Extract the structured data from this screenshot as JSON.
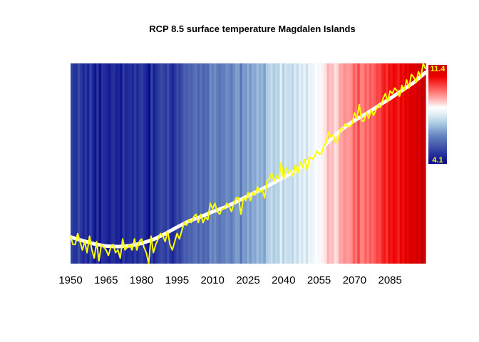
{
  "chart_data": {
    "type": "line",
    "title": "RCP 8.5 surface temperature Magdalen Islands",
    "xlabel": "",
    "ylabel": "",
    "xlim": [
      1950,
      2100
    ],
    "ylim": [
      4.1,
      11.4
    ],
    "x_ticks": [
      "1950",
      "1965",
      "1980",
      "1995",
      "2010",
      "2025",
      "2040",
      "2055",
      "2070",
      "2085"
    ],
    "colorbar": {
      "min_label": "4.1",
      "max_label": "11.4",
      "min": 4.1,
      "max": 11.4
    },
    "background": "warming stripes (one stripe per year, coloured by annual temperature)",
    "series": [
      {
        "style": "annual",
        "color": "#ffff00",
        "x": [
          1950,
          1951,
          1952,
          1953,
          1954,
          1955,
          1956,
          1957,
          1958,
          1959,
          1960,
          1961,
          1962,
          1963,
          1964,
          1965,
          1966,
          1967,
          1968,
          1969,
          1970,
          1971,
          1972,
          1973,
          1974,
          1975,
          1976,
          1977,
          1978,
          1979,
          1980,
          1981,
          1982,
          1983,
          1984,
          1985,
          1986,
          1987,
          1988,
          1989,
          1990,
          1991,
          1992,
          1993,
          1994,
          1995,
          1996,
          1997,
          1998,
          1999,
          2000,
          2001,
          2002,
          2003,
          2004,
          2005,
          2006,
          2007,
          2008,
          2009,
          2010,
          2011,
          2012,
          2013,
          2014,
          2015,
          2016,
          2017,
          2018,
          2019,
          2020,
          2021,
          2022,
          2023,
          2024,
          2025,
          2026,
          2027,
          2028,
          2029,
          2030,
          2031,
          2032,
          2033,
          2034,
          2035,
          2036,
          2037,
          2038,
          2039,
          2040,
          2041,
          2042,
          2043,
          2044,
          2045,
          2046,
          2047,
          2048,
          2049,
          2050,
          2051,
          2052,
          2053,
          2054,
          2055,
          2056,
          2057,
          2058,
          2059,
          2060,
          2061,
          2062,
          2063,
          2064,
          2065,
          2066,
          2067,
          2068,
          2069,
          2070,
          2071,
          2072,
          2073,
          2074,
          2075,
          2076,
          2077,
          2078,
          2079,
          2080,
          2081,
          2082,
          2083,
          2084,
          2085,
          2086,
          2087,
          2088,
          2089,
          2090,
          2091,
          2092,
          2093,
          2094,
          2095,
          2096,
          2097,
          2098,
          2099,
          2100
        ],
        "y": [
          5.1,
          4.8,
          4.8,
          5.2,
          4.9,
          4.6,
          4.9,
          4.5,
          5.1,
          4.6,
          4.3,
          4.9,
          4.2,
          4.8,
          4.7,
          4.6,
          4.4,
          4.7,
          4.8,
          4.5,
          4.6,
          4.3,
          5.0,
          4.6,
          4.7,
          4.8,
          4.6,
          5.0,
          4.6,
          4.9,
          5.0,
          4.7,
          4.5,
          4.1,
          5.1,
          4.5,
          4.8,
          5.0,
          5.2,
          5.1,
          4.9,
          5.3,
          4.8,
          4.6,
          4.9,
          5.2,
          5.0,
          5.3,
          5.6,
          5.5,
          5.7,
          5.6,
          5.8,
          5.9,
          5.6,
          5.9,
          5.6,
          5.8,
          5.7,
          6.3,
          6.1,
          6.3,
          6.0,
          5.9,
          6.1,
          6.1,
          6.3,
          6.2,
          6.0,
          6.3,
          6.5,
          6.5,
          5.9,
          6.5,
          6.4,
          6.7,
          6.4,
          6.7,
          6.6,
          6.9,
          6.7,
          6.8,
          6.5,
          7.1,
          7.2,
          7.4,
          7.1,
          7.3,
          7.2,
          7.8,
          7.2,
          7.6,
          7.4,
          7.5,
          7.3,
          7.7,
          7.4,
          7.8,
          7.6,
          7.9,
          7.5,
          8.0,
          7.9,
          8.0,
          8.2,
          8.1,
          8.1,
          8.4,
          8.5,
          8.9,
          8.7,
          8.8,
          8.5,
          8.6,
          9.0,
          9.0,
          9.2,
          9.1,
          9.1,
          9.2,
          9.6,
          9.4,
          9.9,
          9.3,
          9.3,
          9.6,
          9.4,
          9.7,
          9.5,
          9.7,
          9.9,
          9.8,
          10.1,
          10.3,
          10.0,
          10.4,
          10.3,
          10.5,
          10.4,
          10.2,
          10.6,
          10.4,
          10.8,
          10.5,
          11.0,
          10.9,
          10.7,
          11.1,
          10.9,
          11.4,
          11.2
        ]
      },
      {
        "style": "smoothed",
        "color": "#ffffff",
        "x": [
          1950,
          1955,
          1960,
          1965,
          1970,
          1975,
          1980,
          1985,
          1990,
          1995,
          2000,
          2005,
          2010,
          2015,
          2020,
          2025,
          2030,
          2035,
          2040,
          2045,
          2050,
          2055,
          2060,
          2065,
          2070,
          2075,
          2080,
          2085,
          2090,
          2095,
          2100
        ],
        "y": [
          5.07,
          4.94,
          4.82,
          4.74,
          4.72,
          4.75,
          4.84,
          4.98,
          5.19,
          5.43,
          5.65,
          5.81,
          5.99,
          6.15,
          6.35,
          6.57,
          6.78,
          7.01,
          7.24,
          7.49,
          7.77,
          8.19,
          8.63,
          9.02,
          9.32,
          9.57,
          9.85,
          10.12,
          10.41,
          10.7,
          11.07
        ]
      }
    ]
  },
  "colors": {
    "coldest": "#08088c",
    "cool": "#3f58aa",
    "neutral_cool": "#deecf3",
    "neutral": "#ffffff",
    "warm": "#ff6a6a",
    "hottest": "#c80000"
  }
}
